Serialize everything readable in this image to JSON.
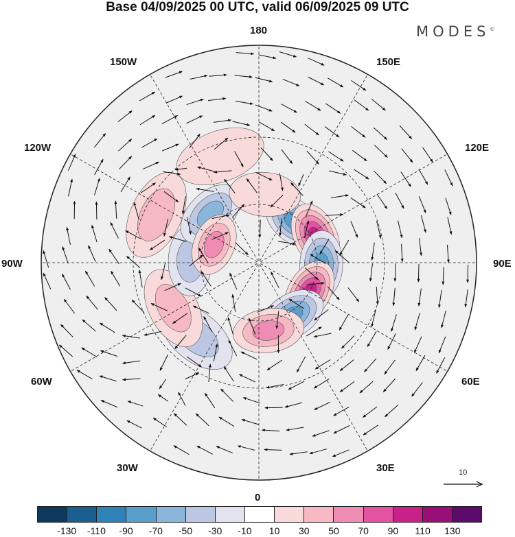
{
  "title": "Base 04/09/2025 00 UTC, valid 06/09/2025 09 UTC",
  "brand": "MODES",
  "brand_mark": "©",
  "longitude_labels": {
    "top": "180",
    "bottom": "0",
    "left": "90W",
    "right": "90E",
    "upper_left_1": "150W",
    "upper_left_2": "120W",
    "upper_right_1": "150E",
    "upper_right_2": "120E",
    "lower_left_1": "60W",
    "lower_left_2": "30W",
    "lower_right_1": "60E",
    "lower_right_2": "30E"
  },
  "vector_reference": {
    "value": "10"
  },
  "colorbar": {
    "colors": [
      "#0d3a5c",
      "#1a5f8f",
      "#2f82b8",
      "#5a9fcb",
      "#8bb6db",
      "#bcc8e3",
      "#e3e3f0",
      "#ffffff",
      "#f9dada",
      "#f6b9c4",
      "#ef8cb3",
      "#e452a2",
      "#c9218a",
      "#9a0e78",
      "#5c0a6b"
    ],
    "tick_labels": [
      "-130",
      "-110",
      "-90",
      "-70",
      "-50",
      "-30",
      "-10",
      "10",
      "30",
      "50",
      "70",
      "90",
      "110",
      "130"
    ]
  },
  "anomaly_centers": [
    {
      "lon": 140,
      "lat": 62,
      "value": -70
    },
    {
      "lon": 115,
      "lat": 58,
      "value": 90
    },
    {
      "lon": 88,
      "lat": 58,
      "value": -80
    },
    {
      "lon": 60,
      "lat": 60,
      "value": 100
    },
    {
      "lon": 32,
      "lat": 58,
      "value": -80
    },
    {
      "lon": 8,
      "lat": 55,
      "value": 60
    },
    {
      "lon": -40,
      "lat": 42,
      "value": -40
    },
    {
      "lon": -62,
      "lat": 42,
      "value": 30
    },
    {
      "lon": -92,
      "lat": 55,
      "value": -30
    },
    {
      "lon": -115,
      "lat": 35,
      "value": 30
    },
    {
      "lon": -135,
      "lat": 55,
      "value": -50
    },
    {
      "lon": -112,
      "lat": 65,
      "value": 50
    },
    {
      "lon": 175,
      "lat": 55,
      "value": 20
    },
    {
      "lon": -160,
      "lat": 35,
      "value": 15
    }
  ]
}
